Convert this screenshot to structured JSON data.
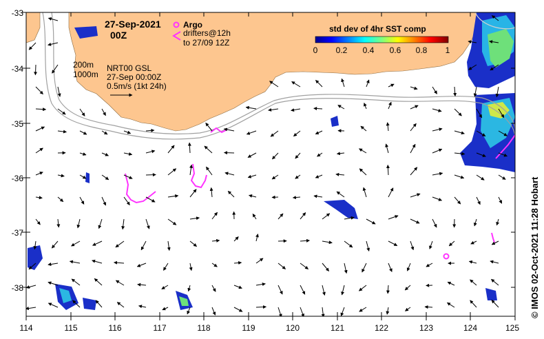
{
  "map": {
    "lon_range": [
      114,
      125
    ],
    "lat_range": [
      -38.5,
      -33
    ],
    "x_ticks": [
      "114",
      "115",
      "116",
      "117",
      "118",
      "119",
      "120",
      "121",
      "122",
      "123",
      "124",
      "125"
    ],
    "y_ticks": [
      "-33",
      "-34",
      "-35",
      "-36",
      "-37",
      "-38"
    ],
    "date_title": "27-Sep-2021",
    "time_title": "00Z",
    "argo_label": "Argo",
    "drifters_label": "drifters@12h",
    "drifters_to_label": "to 27/09 12Z",
    "isobath_200": "200m",
    "isobath_1000": "1000m",
    "product_label": "NRT00 GSL",
    "product_time": "27-Sep 00:00Z",
    "scale_label": "0.5m/s (1kt 24h)",
    "colorbar_title": "std dev of 4hr SST comp",
    "colorbar_ticks": [
      "0",
      "0.2",
      "0.4",
      "0.6",
      "0.8",
      "1"
    ],
    "credit": "© IMOS 02-Oct-2021 11:28 Hobart",
    "colors": {
      "land": "#fdc68f",
      "magenta": "#ff33ff",
      "isobath": "#a0a0a0"
    }
  }
}
